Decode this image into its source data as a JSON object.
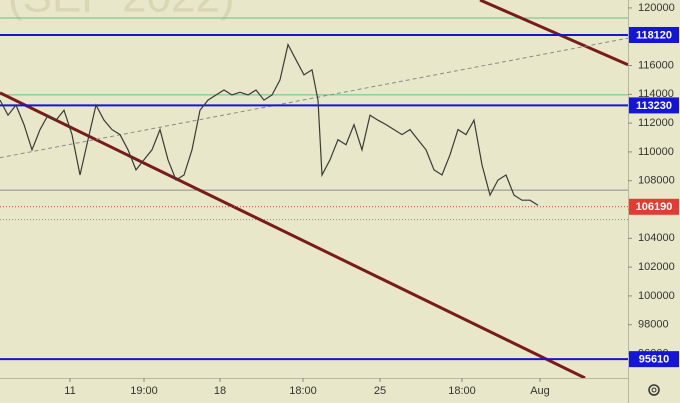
{
  "chart_data": {
    "type": "line",
    "watermark": "(SEP 2022)",
    "series": [
      {
        "color": "#3a3a3a",
        "x": [
          0,
          2,
          4,
          6,
          8,
          10,
          12,
          14,
          16,
          18,
          20,
          22,
          24,
          26,
          28,
          30,
          32,
          34,
          36,
          38,
          40,
          42,
          44,
          46,
          48,
          50,
          52,
          54,
          56,
          58,
          60,
          62,
          64,
          66,
          68,
          70,
          72,
          74,
          76,
          78,
          79.5,
          80.5,
          82.5,
          84.5,
          86.5,
          88.5,
          90.5,
          92.5,
          94.5,
          96.5,
          98.5,
          100.5,
          102.5,
          104.5,
          106.5,
          108.5,
          110.5,
          112.5,
          114.5,
          116.5,
          118.5,
          120.5,
          122.5,
          124.5,
          126.5,
          128.5,
          130.5,
          132.5,
          134.5
        ],
        "values": [
          113600,
          112550,
          113250,
          111900,
          110150,
          111550,
          112550,
          112200,
          112900,
          111200,
          108400,
          110850,
          113250,
          112200,
          111550,
          111200,
          110150,
          108750,
          109450,
          110150,
          111550,
          109450,
          108050,
          108400,
          110150,
          112900,
          113600,
          113950,
          114300,
          113950,
          114150,
          113950,
          114300,
          113600,
          113950,
          115000,
          117450,
          116400,
          115350,
          115700,
          113600,
          108400,
          109450,
          110850,
          110500,
          111900,
          110150,
          112550,
          112200,
          111900,
          111550,
          111200,
          111550,
          110850,
          110150,
          108750,
          108400,
          109800,
          111550,
          111200,
          112200,
          109100,
          107000,
          108050,
          108400,
          107000,
          106650,
          106650,
          106300
        ]
      }
    ],
    "levels": [
      {
        "value": 118120,
        "color": "#1515d8"
      },
      {
        "value": 113230,
        "color": "#1515d8"
      },
      {
        "value": 106190,
        "color": "#e23b32"
      },
      {
        "value": 95610,
        "color": "#1515d8"
      }
    ],
    "guides": [
      119300,
      113960,
      107350,
      105300
    ],
    "trendlines": [
      {
        "x": [
          0,
          146.25
        ],
        "y": [
          114100,
          94300
        ],
        "color": "#7a1b1b"
      },
      {
        "x": [
          120,
          157
        ],
        "y": [
          120550,
          116050
        ],
        "color": "#7a1b1b"
      },
      {
        "x": [
          0,
          157
        ],
        "y": [
          109600,
          117900
        ],
        "color": "#8a8a8a"
      }
    ],
    "xlim": [
      0,
      157
    ],
    "ylim": [
      94300,
      120550
    ],
    "xticks": [
      {
        "value": 17.5,
        "label": "11"
      },
      {
        "value": 36,
        "label": "19:00"
      },
      {
        "value": 55,
        "label": "18"
      },
      {
        "value": 75.75,
        "label": "18:00"
      },
      {
        "value": 95,
        "label": "25"
      },
      {
        "value": 115.5,
        "label": "18:00"
      },
      {
        "value": 135,
        "label": "Aug"
      }
    ],
    "yticks": [
      96000,
      98000,
      100000,
      102000,
      104000,
      106000,
      108000,
      110000,
      112000,
      114000,
      116000,
      118000,
      120000
    ]
  }
}
